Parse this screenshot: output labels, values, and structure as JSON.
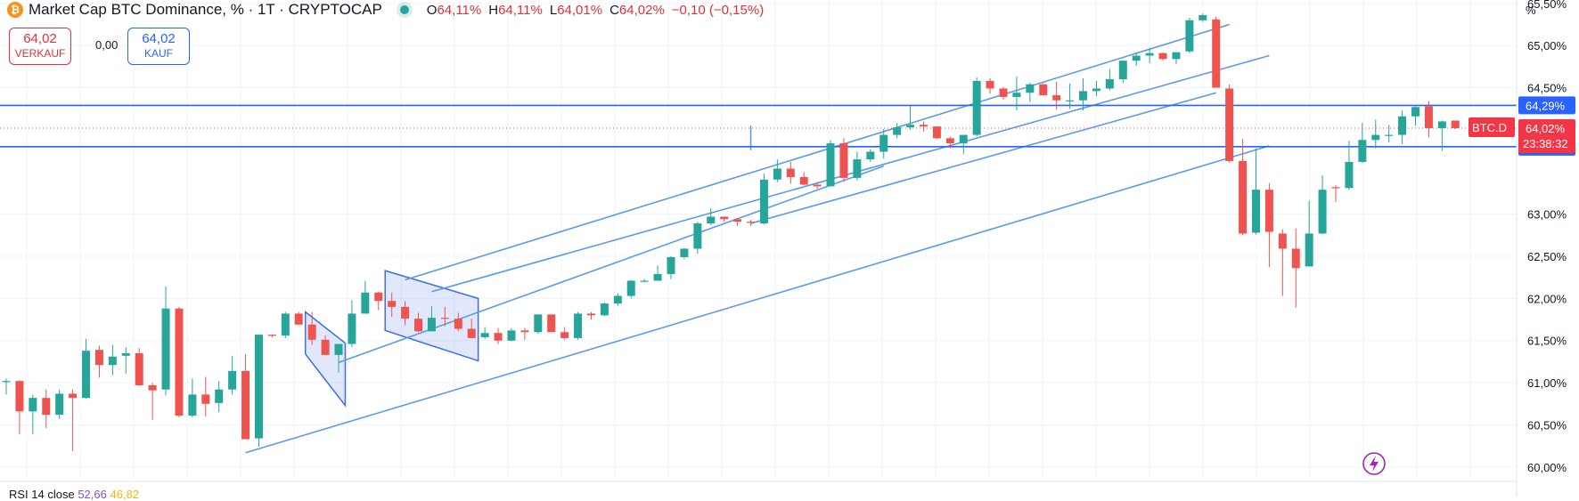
{
  "header": {
    "title": "Market Cap BTC Dominance, % · 1T · CRYPTOCAP",
    "icon": "bitcoin-icon",
    "ohlc": [
      {
        "label": "O",
        "value": "64,11%"
      },
      {
        "label": "H",
        "value": "64,11%"
      },
      {
        "label": "L",
        "value": "64,01%"
      },
      {
        "label": "C",
        "value": "64,02%"
      }
    ],
    "change": "−0,10 (−0,15%)"
  },
  "trade": {
    "sell_price": "64,02",
    "sell_label": "VERKAUF",
    "spread": "0,00",
    "buy_price": "64,02",
    "buy_label": "KAUF"
  },
  "axis": {
    "unit": "%"
  },
  "rsi": {
    "label": "RSI 14 close",
    "value1": "52,66",
    "value2": "46,82"
  },
  "colors": {
    "up": "#26a69a",
    "down": "#ef5350",
    "level": "#2962ff",
    "trend": "#5b9be6",
    "badge_red": "#f23645"
  },
  "chart_data": {
    "type": "candlestick",
    "symbol_label": "BTC.D",
    "last_value": 64.02,
    "last_label": "64,02%",
    "countdown": "23:38:32",
    "ylim": [
      59.84,
      65.54
    ],
    "y_ticks": [
      {
        "value": 65.5,
        "label": "65,50%"
      },
      {
        "value": 65.0,
        "label": "65,00%"
      },
      {
        "value": 64.5,
        "label": "64,50%"
      },
      {
        "value": 63.0,
        "label": "63,00%"
      },
      {
        "value": 62.5,
        "label": "62,50%"
      },
      {
        "value": 62.0,
        "label": "62,00%"
      },
      {
        "value": 61.5,
        "label": "61,50%"
      },
      {
        "value": 61.0,
        "label": "61,00%"
      },
      {
        "value": 60.5,
        "label": "60,50%"
      },
      {
        "value": 60.0,
        "label": "60,00%"
      }
    ],
    "levels": [
      {
        "value": 64.29,
        "label": "64,29%"
      },
      {
        "value": 63.8,
        "label": "63,80%"
      }
    ],
    "candles": [
      [
        61.01,
        61.05,
        60.86,
        61.02
      ],
      [
        61.02,
        61.03,
        60.39,
        60.66
      ],
      [
        60.66,
        60.86,
        60.39,
        60.82
      ],
      [
        60.82,
        60.92,
        60.46,
        60.62
      ],
      [
        60.62,
        60.92,
        60.57,
        60.87
      ],
      [
        60.87,
        60.92,
        60.19,
        60.82
      ],
      [
        60.82,
        61.52,
        60.81,
        61.38
      ],
      [
        61.39,
        61.44,
        61.06,
        61.21
      ],
      [
        61.21,
        61.45,
        61.09,
        61.31
      ],
      [
        61.32,
        61.42,
        61.11,
        61.35
      ],
      [
        61.35,
        61.41,
        60.96,
        60.97
      ],
      [
        60.97,
        61.0,
        60.56,
        60.91
      ],
      [
        60.92,
        62.14,
        60.85,
        61.88
      ],
      [
        61.88,
        61.9,
        60.59,
        60.61
      ],
      [
        60.61,
        61.05,
        60.59,
        60.86
      ],
      [
        60.86,
        61.07,
        60.6,
        60.75
      ],
      [
        60.76,
        61.02,
        60.65,
        60.92
      ],
      [
        60.92,
        61.32,
        60.86,
        61.14
      ],
      [
        61.14,
        61.34,
        60.33,
        60.33
      ],
      [
        60.34,
        61.57,
        60.24,
        61.57
      ],
      [
        61.57,
        61.57,
        61.54,
        61.56
      ],
      [
        61.56,
        61.84,
        61.53,
        61.82
      ],
      [
        61.82,
        61.84,
        61.69,
        61.69
      ],
      [
        61.69,
        61.84,
        61.45,
        61.51
      ],
      [
        61.51,
        61.56,
        61.33,
        61.33
      ],
      [
        61.33,
        61.42,
        61.12,
        61.46
      ],
      [
        61.46,
        61.98,
        61.42,
        61.82
      ],
      [
        61.82,
        62.21,
        61.82,
        62.07
      ],
      [
        62.07,
        62.08,
        61.86,
        61.97
      ],
      [
        61.97,
        62.07,
        61.78,
        61.9
      ],
      [
        61.9,
        61.97,
        61.68,
        61.76
      ],
      [
        61.76,
        61.83,
        61.6,
        61.61
      ],
      [
        61.61,
        61.91,
        61.61,
        61.77
      ],
      [
        61.77,
        61.9,
        61.67,
        61.76
      ],
      [
        61.76,
        61.83,
        61.61,
        61.64
      ],
      [
        61.64,
        61.76,
        61.53,
        61.53
      ],
      [
        61.54,
        61.66,
        61.52,
        61.59
      ],
      [
        61.59,
        61.65,
        61.46,
        61.5
      ],
      [
        61.5,
        61.65,
        61.49,
        61.62
      ],
      [
        61.62,
        61.65,
        61.51,
        61.6
      ],
      [
        61.6,
        61.81,
        61.58,
        61.81
      ],
      [
        61.81,
        61.81,
        61.61,
        61.6
      ],
      [
        61.6,
        61.66,
        61.51,
        61.53
      ],
      [
        61.53,
        61.84,
        61.51,
        61.82
      ],
      [
        61.82,
        61.84,
        61.75,
        61.8
      ],
      [
        61.8,
        61.95,
        61.79,
        61.94
      ],
      [
        61.94,
        62.06,
        61.91,
        62.03
      ],
      [
        62.03,
        62.22,
        62.0,
        62.21
      ],
      [
        62.21,
        62.23,
        62.19,
        62.21
      ],
      [
        62.21,
        62.39,
        62.21,
        62.29
      ],
      [
        62.29,
        62.5,
        62.23,
        62.49
      ],
      [
        62.49,
        62.6,
        62.47,
        62.59
      ],
      [
        62.59,
        62.91,
        62.53,
        62.89
      ],
      [
        62.89,
        63.07,
        62.87,
        62.97
      ],
      [
        62.97,
        62.96,
        62.91,
        62.94
      ],
      [
        62.94,
        62.95,
        62.86,
        62.91
      ],
      [
        62.91,
        62.93,
        62.86,
        62.9
      ],
      [
        62.89,
        63.48,
        62.88,
        63.41
      ],
      [
        63.41,
        63.65,
        63.38,
        63.54
      ],
      [
        63.54,
        63.62,
        63.36,
        63.44
      ],
      [
        63.44,
        63.5,
        63.34,
        63.35
      ],
      [
        63.35,
        63.38,
        63.3,
        63.33
      ],
      [
        63.33,
        63.88,
        63.33,
        63.84
      ],
      [
        63.84,
        63.9,
        63.38,
        63.43
      ],
      [
        63.43,
        63.74,
        63.4,
        63.65
      ],
      [
        63.65,
        63.77,
        63.62,
        63.74
      ],
      [
        63.74,
        64.01,
        63.66,
        63.94
      ],
      [
        63.94,
        64.08,
        63.9,
        64.03
      ],
      [
        64.03,
        64.28,
        64.0,
        64.06
      ],
      [
        64.06,
        64.1,
        63.98,
        64.04
      ],
      [
        64.04,
        64.03,
        63.89,
        63.9
      ],
      [
        63.9,
        63.92,
        63.78,
        63.84
      ],
      [
        63.84,
        63.92,
        63.71,
        63.94
      ],
      [
        63.94,
        64.62,
        63.92,
        64.58
      ],
      [
        64.58,
        64.61,
        64.43,
        64.49
      ],
      [
        64.49,
        64.51,
        64.36,
        64.39
      ],
      [
        64.39,
        64.63,
        64.23,
        64.44
      ],
      [
        64.44,
        64.56,
        64.33,
        64.54
      ],
      [
        64.54,
        64.55,
        64.41,
        64.41
      ],
      [
        64.41,
        64.57,
        64.24,
        64.35
      ],
      [
        64.35,
        64.55,
        64.25,
        64.35
      ],
      [
        64.35,
        64.61,
        64.23,
        64.46
      ],
      [
        64.46,
        64.58,
        64.4,
        64.49
      ],
      [
        64.49,
        64.72,
        64.47,
        64.6
      ],
      [
        64.6,
        64.82,
        64.56,
        64.82
      ],
      [
        64.82,
        64.92,
        64.76,
        64.88
      ],
      [
        64.88,
        64.97,
        64.79,
        64.91
      ],
      [
        64.91,
        64.92,
        64.82,
        64.84
      ],
      [
        64.84,
        64.91,
        64.78,
        64.92
      ],
      [
        64.93,
        65.33,
        64.91,
        65.3
      ],
      [
        65.3,
        65.38,
        65.28,
        65.36
      ],
      [
        65.31,
        65.34,
        64.52,
        64.5
      ],
      [
        64.49,
        64.54,
        63.61,
        63.63
      ],
      [
        63.63,
        63.89,
        62.75,
        62.77
      ],
      [
        62.78,
        63.78,
        62.76,
        63.29
      ],
      [
        63.29,
        63.37,
        62.37,
        62.79
      ],
      [
        62.77,
        62.82,
        62.03,
        62.59
      ],
      [
        62.59,
        62.83,
        61.89,
        62.36
      ],
      [
        62.38,
        63.16,
        62.42,
        62.77
      ],
      [
        62.77,
        63.46,
        62.76,
        63.29
      ],
      [
        63.32,
        63.34,
        63.14,
        63.31
      ],
      [
        63.31,
        63.87,
        63.29,
        63.62
      ],
      [
        63.62,
        64.08,
        63.61,
        63.88
      ],
      [
        63.88,
        64.12,
        63.78,
        63.94
      ],
      [
        63.94,
        64.06,
        63.85,
        63.94
      ],
      [
        63.94,
        64.23,
        63.83,
        64.16
      ],
      [
        64.16,
        64.29,
        64.05,
        64.27
      ],
      [
        64.28,
        64.34,
        63.91,
        64.02
      ],
      [
        64.02,
        64.11,
        63.75,
        64.1
      ],
      [
        64.11,
        64.11,
        64.01,
        64.02
      ]
    ],
    "annotations": {
      "trend_lines": [
        [
          {
            "bar": 18,
            "value": 60.17
          },
          {
            "bar": 95,
            "value": 63.81
          }
        ],
        [
          {
            "bar": 25,
            "value": 61.24
          },
          {
            "bar": 66,
            "value": 63.57
          }
        ],
        [
          {
            "bar": 30,
            "value": 62.22
          },
          {
            "bar": 92,
            "value": 65.25
          }
        ],
        [
          {
            "bar": 56,
            "value": 62.89
          },
          {
            "bar": 91,
            "value": 64.44
          }
        ],
        [
          {
            "bar": 56,
            "value": 63.76
          },
          {
            "bar": 56,
            "value": 64.05
          }
        ],
        [
          {
            "bar": 32,
            "value": 62.08
          },
          {
            "bar": 95,
            "value": 64.88
          }
        ]
      ],
      "flag_zones": [
        {
          "poly": [
            {
              "bar": 22.5,
              "value": 61.84
            },
            {
              "bar": 25.5,
              "value": 61.47
            },
            {
              "bar": 25.5,
              "value": 60.73
            },
            {
              "bar": 22.5,
              "value": 61.34
            }
          ]
        },
        {
          "poly": [
            {
              "bar": 28.5,
              "value": 62.33
            },
            {
              "bar": 35.5,
              "value": 62.0
            },
            {
              "bar": 35.5,
              "value": 61.26
            },
            {
              "bar": 28.5,
              "value": 61.62
            }
          ]
        }
      ]
    }
  }
}
